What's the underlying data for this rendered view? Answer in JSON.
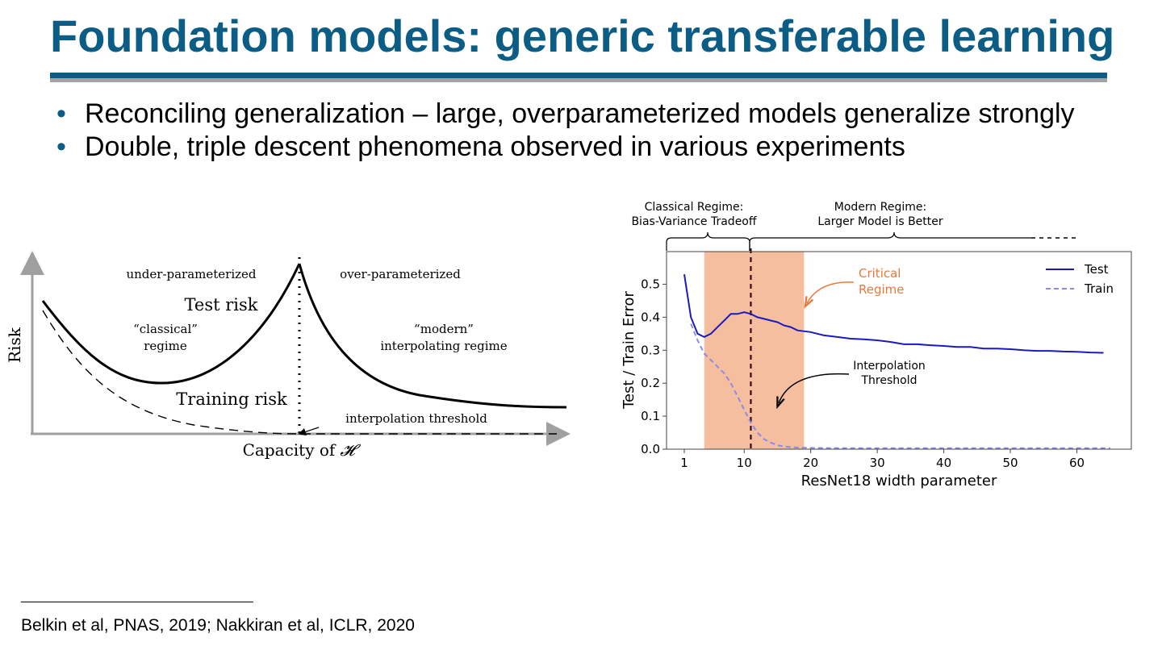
{
  "slide": {
    "title": "Foundation models: generic transferable learning",
    "bullets": [
      "Reconciling generalization – large, overparameterized models generalize strongly",
      "Double, triple descent phenomena observed in various experiments"
    ],
    "footnote": "Belkin et al, PNAS, 2019; Nakkiran et al, ICLR, 2020"
  },
  "colors": {
    "title": "#0b5d86",
    "rule_blue": "#0b5d86",
    "rule_grey": "#a3a3a3",
    "test_line": "#1a1ac2",
    "train_line": "#8c8ce8",
    "critical_band": "#f5be9e",
    "critical_text": "#e8793a"
  },
  "left_figure": {
    "ylabel": "Risk",
    "xlabel_prefix": "Capacity of",
    "xlabel_symbol": "𝓗",
    "under": "under-parameterized",
    "over": "over-parameterized",
    "test_risk": "Test risk",
    "training_risk": "Training risk",
    "classical_1": "“classical”",
    "classical_2": "regime",
    "modern_1": "“modern”",
    "modern_2": "interpolating regime",
    "threshold": "interpolation threshold"
  },
  "chart_data": {
    "type": "line",
    "xlabel": "ResNet18 width parameter",
    "ylabel": "Test / Train Error",
    "xlim": [
      1,
      65
    ],
    "ylim": [
      0,
      0.55
    ],
    "x_ticks": [
      1,
      10,
      20,
      30,
      40,
      50,
      60
    ],
    "y_ticks": [
      0.0,
      0.1,
      0.2,
      0.3,
      0.4,
      0.5
    ],
    "legend": "top-right",
    "grid": false,
    "series": [
      {
        "name": "Test",
        "style": "solid",
        "x": [
          1,
          2,
          3,
          4,
          5,
          6,
          7,
          8,
          9,
          10,
          11,
          12,
          13,
          14,
          15,
          16,
          17,
          18,
          20,
          22,
          24,
          26,
          28,
          30,
          32,
          34,
          36,
          38,
          40,
          42,
          44,
          46,
          48,
          50,
          52,
          54,
          56,
          58,
          60,
          62,
          64
        ],
        "y": [
          0.53,
          0.4,
          0.35,
          0.34,
          0.35,
          0.37,
          0.39,
          0.41,
          0.41,
          0.415,
          0.41,
          0.4,
          0.395,
          0.39,
          0.385,
          0.375,
          0.37,
          0.36,
          0.355,
          0.345,
          0.34,
          0.335,
          0.333,
          0.33,
          0.325,
          0.318,
          0.318,
          0.315,
          0.313,
          0.31,
          0.31,
          0.305,
          0.305,
          0.303,
          0.3,
          0.298,
          0.298,
          0.296,
          0.295,
          0.293,
          0.292
        ]
      },
      {
        "name": "Train",
        "style": "dashed",
        "x": [
          2,
          3,
          4,
          5,
          6,
          7,
          8,
          9,
          10,
          11,
          12,
          13,
          14,
          15,
          16,
          17,
          18,
          20,
          25,
          30,
          40,
          50,
          60,
          65
        ],
        "y": [
          0.38,
          0.33,
          0.29,
          0.27,
          0.25,
          0.23,
          0.2,
          0.16,
          0.12,
          0.08,
          0.05,
          0.03,
          0.02,
          0.012,
          0.008,
          0.006,
          0.005,
          0.004,
          0.003,
          0.003,
          0.003,
          0.003,
          0.003,
          0.003
        ]
      }
    ],
    "critical_band": [
      4,
      19
    ],
    "threshold_x": 11,
    "annotations": {
      "classical_1": "Classical Regime:",
      "classical_2": "Bias-Variance Tradeoff",
      "modern_1": "Modern Regime:",
      "modern_2": "Larger Model is Better",
      "critical_1": "Critical",
      "critical_2": "Regime",
      "interp_1": "Interpolation",
      "interp_2": "Threshold"
    }
  }
}
